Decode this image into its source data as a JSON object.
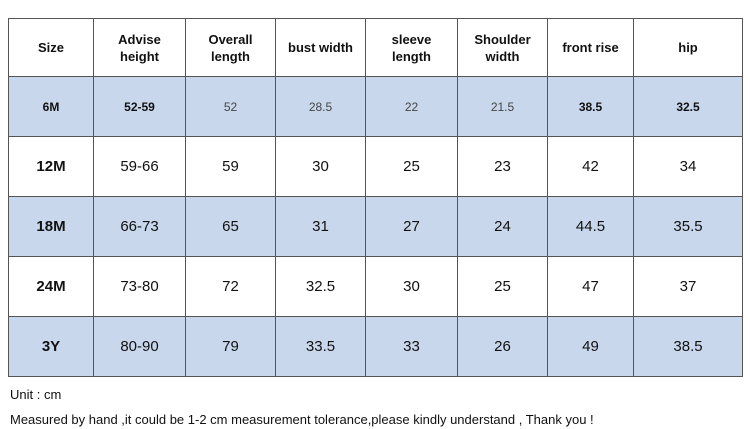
{
  "table": {
    "header": [
      "Size",
      "Advise height",
      "Overall length",
      "bust width",
      "sleeve length",
      "Shoulder width",
      "front rise",
      "hip"
    ],
    "rows": [
      [
        "6M",
        "52-59",
        "52",
        "28.5",
        "22",
        "21.5",
        "38.5",
        "32.5"
      ],
      [
        "12M",
        "59-66",
        "59",
        "30",
        "25",
        "23",
        "42",
        "34"
      ],
      [
        "18M",
        "66-73",
        "65",
        "31",
        "27",
        "24",
        "44.5",
        "35.5"
      ],
      [
        "24M",
        "73-80",
        "72",
        "32.5",
        "30",
        "25",
        "47",
        "37"
      ],
      [
        "3Y",
        "80-90",
        "79",
        "33.5",
        "33",
        "26",
        "49",
        "38.5"
      ]
    ]
  },
  "notes": {
    "unit": "Unit : cm",
    "tolerance": "Measured by hand ,it could be 1-2 cm measurement tolerance,please kindly understand , Thank you !"
  }
}
